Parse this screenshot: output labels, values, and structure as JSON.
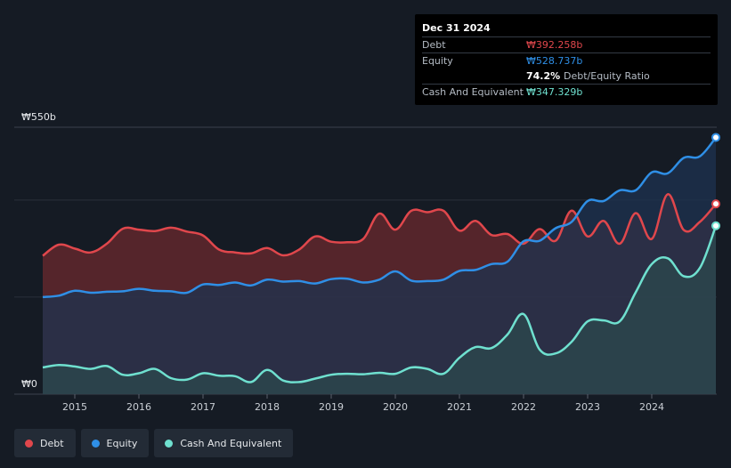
{
  "tooltip": {
    "date": "Dec 31 2024",
    "debt_label": "Debt",
    "debt_value": "₩392.258b",
    "equity_label": "Equity",
    "equity_value": "₩528.737b",
    "ratio_value": "74.2%",
    "ratio_label": "Debt/Equity Ratio",
    "cash_label": "Cash And Equivalent",
    "cash_value": "₩347.329b"
  },
  "legend": [
    {
      "label": "Debt",
      "color": "#e0474c"
    },
    {
      "label": "Equity",
      "color": "#2f8fe6"
    },
    {
      "label": "Cash And Equivalent",
      "color": "#6fe0cf"
    }
  ],
  "chart_data": {
    "type": "area",
    "y_top_label": "₩550b",
    "y_bottom_label": "₩0",
    "ylim": [
      0,
      550
    ],
    "xlim": [
      2014.5,
      2025.0
    ],
    "x_tick_labels": [
      "2015",
      "2016",
      "2017",
      "2018",
      "2019",
      "2020",
      "2021",
      "2022",
      "2023",
      "2024"
    ],
    "x_ticks": [
      2015,
      2016,
      2017,
      2018,
      2019,
      2020,
      2021,
      2022,
      2023,
      2024
    ],
    "series": [
      {
        "name": "Debt",
        "color": "#e0474c",
        "fill": "#6b2a2e",
        "points": [
          [
            2014.5,
            285
          ],
          [
            2014.75,
            308
          ],
          [
            2015.0,
            300
          ],
          [
            2015.25,
            292
          ],
          [
            2015.5,
            310
          ],
          [
            2015.75,
            341
          ],
          [
            2016.0,
            339
          ],
          [
            2016.25,
            336
          ],
          [
            2016.5,
            343
          ],
          [
            2016.75,
            335
          ],
          [
            2017.0,
            327
          ],
          [
            2017.25,
            298
          ],
          [
            2017.5,
            292
          ],
          [
            2017.75,
            290
          ],
          [
            2018.0,
            301
          ],
          [
            2018.25,
            286
          ],
          [
            2018.5,
            298
          ],
          [
            2018.75,
            325
          ],
          [
            2019.0,
            314
          ],
          [
            2019.25,
            313
          ],
          [
            2019.5,
            320
          ],
          [
            2019.75,
            372
          ],
          [
            2020.0,
            339
          ],
          [
            2020.25,
            378
          ],
          [
            2020.5,
            375
          ],
          [
            2020.75,
            378
          ],
          [
            2021.0,
            337
          ],
          [
            2021.25,
            357
          ],
          [
            2021.5,
            328
          ],
          [
            2021.75,
            330
          ],
          [
            2022.0,
            310
          ],
          [
            2022.25,
            340
          ],
          [
            2022.5,
            316
          ],
          [
            2022.75,
            378
          ],
          [
            2023.0,
            325
          ],
          [
            2023.25,
            357
          ],
          [
            2023.5,
            310
          ],
          [
            2023.75,
            373
          ],
          [
            2024.0,
            320
          ],
          [
            2024.25,
            412
          ],
          [
            2024.5,
            338
          ],
          [
            2024.75,
            355
          ],
          [
            2025.0,
            392
          ]
        ]
      },
      {
        "name": "Equity",
        "color": "#2f8fe6",
        "fill": "#1d3350",
        "points": [
          [
            2014.5,
            200
          ],
          [
            2014.75,
            203
          ],
          [
            2015.0,
            213
          ],
          [
            2015.25,
            209
          ],
          [
            2015.5,
            211
          ],
          [
            2015.75,
            212
          ],
          [
            2016.0,
            217
          ],
          [
            2016.25,
            213
          ],
          [
            2016.5,
            212
          ],
          [
            2016.75,
            209
          ],
          [
            2017.0,
            226
          ],
          [
            2017.25,
            225
          ],
          [
            2017.5,
            230
          ],
          [
            2017.75,
            224
          ],
          [
            2018.0,
            236
          ],
          [
            2018.25,
            232
          ],
          [
            2018.5,
            233
          ],
          [
            2018.75,
            228
          ],
          [
            2019.0,
            237
          ],
          [
            2019.25,
            238
          ],
          [
            2019.5,
            230
          ],
          [
            2019.75,
            236
          ],
          [
            2020.0,
            253
          ],
          [
            2020.25,
            234
          ],
          [
            2020.5,
            233
          ],
          [
            2020.75,
            236
          ],
          [
            2021.0,
            254
          ],
          [
            2021.25,
            256
          ],
          [
            2021.5,
            268
          ],
          [
            2021.75,
            273
          ],
          [
            2022.0,
            315
          ],
          [
            2022.25,
            316
          ],
          [
            2022.5,
            342
          ],
          [
            2022.75,
            355
          ],
          [
            2023.0,
            398
          ],
          [
            2023.25,
            398
          ],
          [
            2023.5,
            420
          ],
          [
            2023.75,
            420
          ],
          [
            2024.0,
            457
          ],
          [
            2024.25,
            455
          ],
          [
            2024.5,
            487
          ],
          [
            2024.75,
            490
          ],
          [
            2025.0,
            529
          ]
        ]
      },
      {
        "name": "Cash And Equivalent",
        "color": "#6fe0cf",
        "fill": "#2c4a4e",
        "points": [
          [
            2014.5,
            55
          ],
          [
            2014.75,
            60
          ],
          [
            2015.0,
            57
          ],
          [
            2015.25,
            52
          ],
          [
            2015.5,
            58
          ],
          [
            2015.75,
            40
          ],
          [
            2016.0,
            43
          ],
          [
            2016.25,
            52
          ],
          [
            2016.5,
            33
          ],
          [
            2016.75,
            30
          ],
          [
            2017.0,
            43
          ],
          [
            2017.25,
            38
          ],
          [
            2017.5,
            37
          ],
          [
            2017.75,
            25
          ],
          [
            2018.0,
            50
          ],
          [
            2018.25,
            28
          ],
          [
            2018.5,
            25
          ],
          [
            2018.75,
            32
          ],
          [
            2019.0,
            40
          ],
          [
            2019.25,
            42
          ],
          [
            2019.5,
            41
          ],
          [
            2019.75,
            44
          ],
          [
            2020.0,
            42
          ],
          [
            2020.25,
            55
          ],
          [
            2020.5,
            52
          ],
          [
            2020.75,
            42
          ],
          [
            2021.0,
            75
          ],
          [
            2021.25,
            97
          ],
          [
            2021.5,
            95
          ],
          [
            2021.75,
            123
          ],
          [
            2022.0,
            165
          ],
          [
            2022.25,
            92
          ],
          [
            2022.5,
            84
          ],
          [
            2022.75,
            108
          ],
          [
            2023.0,
            150
          ],
          [
            2023.25,
            152
          ],
          [
            2023.5,
            150
          ],
          [
            2023.75,
            210
          ],
          [
            2024.0,
            268
          ],
          [
            2024.25,
            280
          ],
          [
            2024.5,
            243
          ],
          [
            2024.75,
            260
          ],
          [
            2025.0,
            347
          ]
        ]
      }
    ]
  }
}
